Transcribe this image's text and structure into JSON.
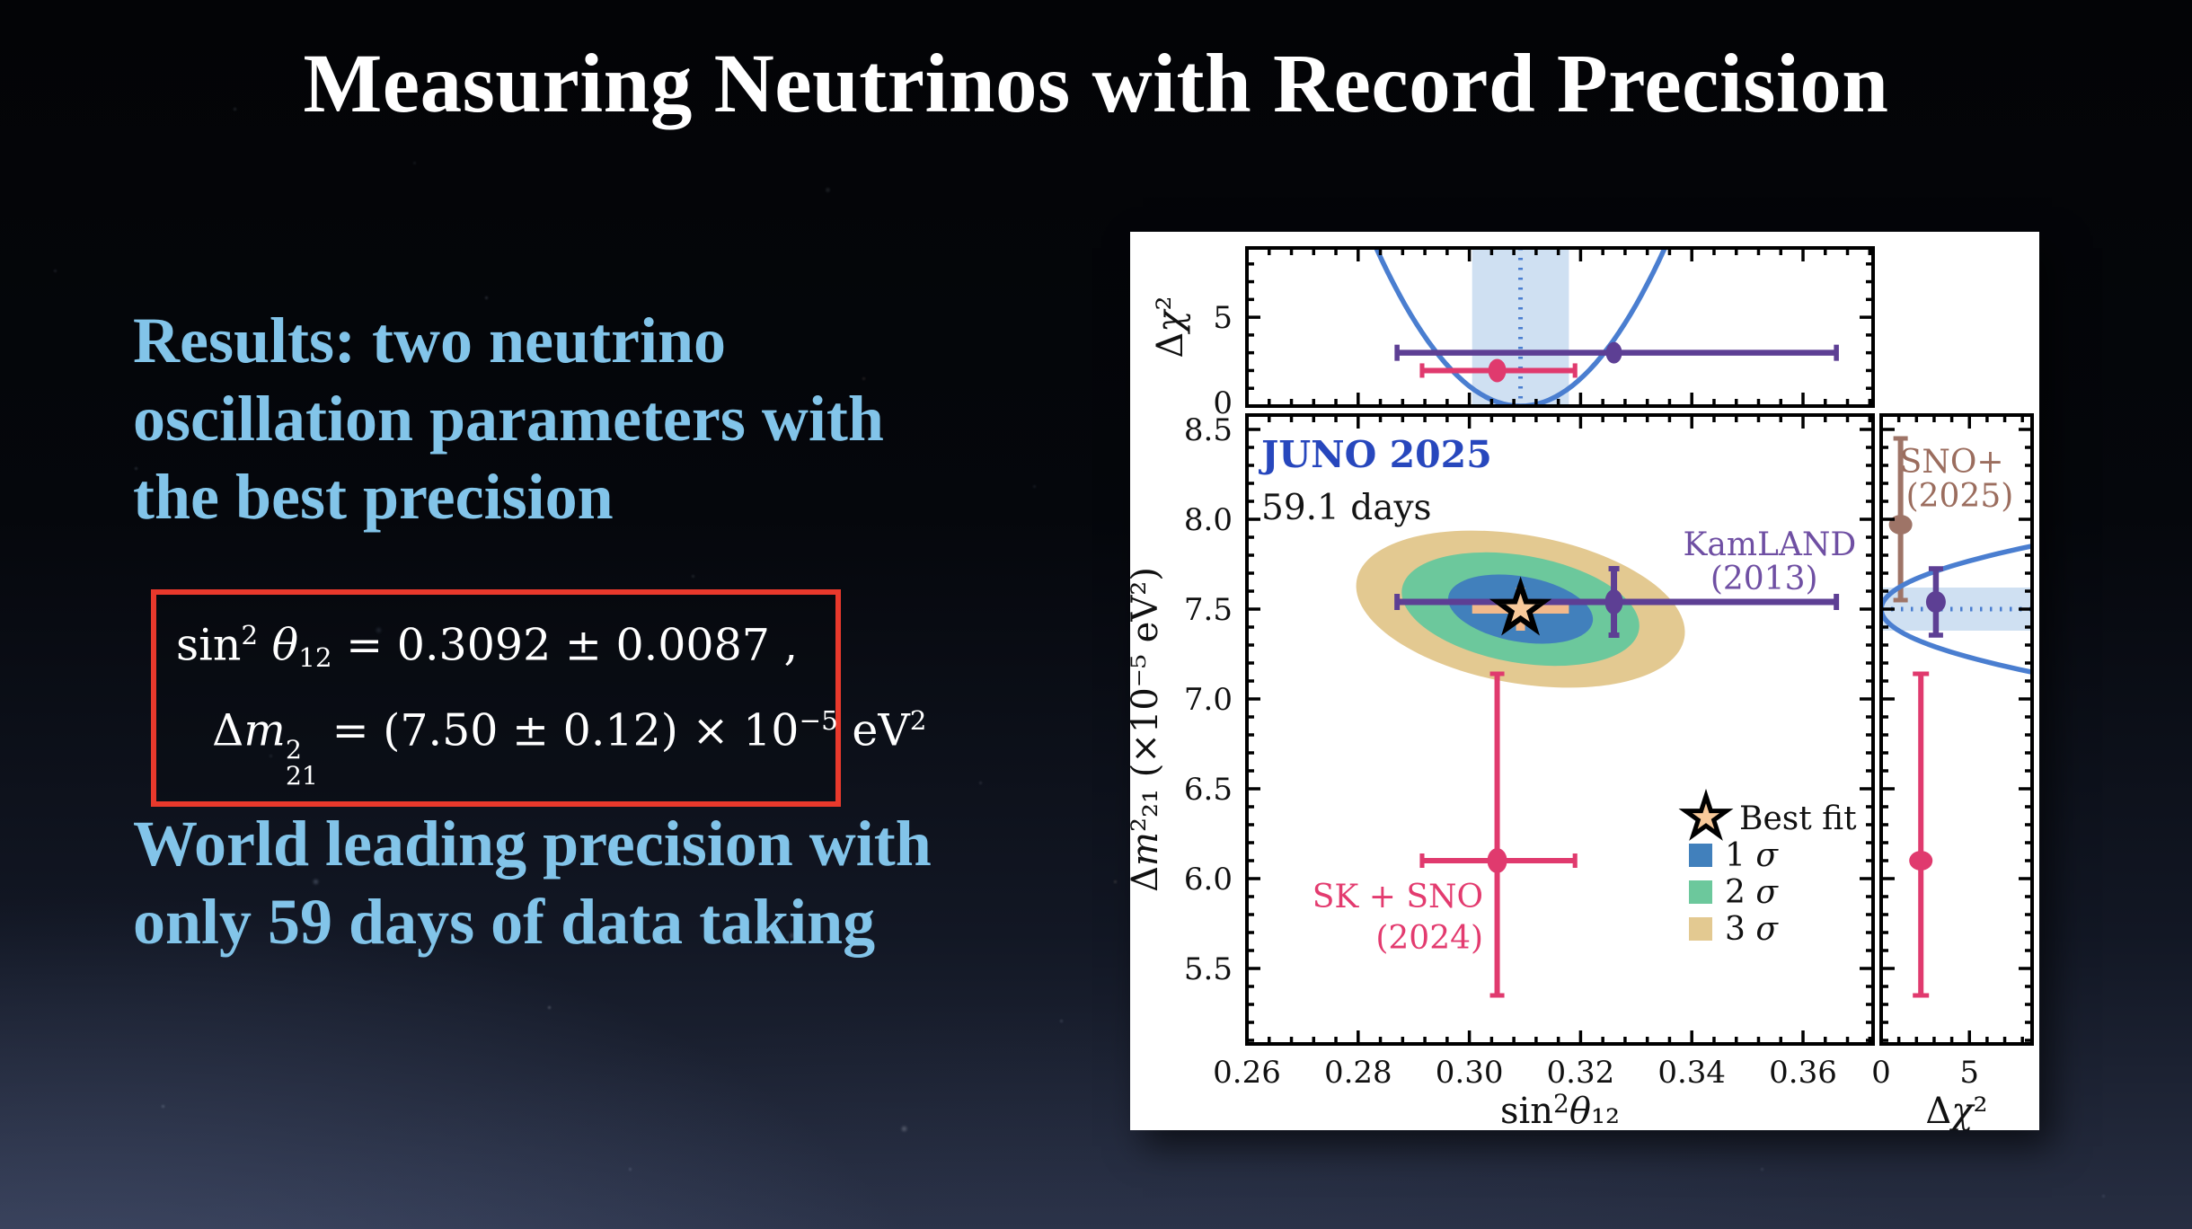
{
  "slide": {
    "title": "Measuring Neutrinos with Record Precision",
    "intro_lines": [
      "Results: two neutrino",
      "oscillation parameters with",
      "the best precision"
    ],
    "outro_lines": [
      "World leading precision with",
      "only 59 days of data taking"
    ],
    "equations_text": [
      "sin²θ₁₂ = 0.3092 ± 0.0087 ,",
      "Δm²₂₁ = (7.50 ± 0.12) × 10⁻⁵ eV²"
    ],
    "eq_line1": [
      {
        "t": "sin"
      },
      {
        "sup": "2"
      },
      {
        "t": " "
      },
      {
        "t": "θ",
        "i": true
      },
      {
        "sub": "12"
      },
      {
        "t": " = 0.3092 ± 0.0087 ,"
      }
    ],
    "eq_line2": [
      {
        "t": "Δ"
      },
      {
        "t": "m",
        "i": true
      },
      {
        "stack": [
          "2",
          "21"
        ]
      },
      {
        "t": " = (7.50 ± 0.12) × 10"
      },
      {
        "sup": "−5"
      },
      {
        "t": " eV"
      },
      {
        "sup": "2"
      }
    ],
    "accent_text_color": "#82c4e9",
    "box_border_color": "#e8392c"
  },
  "chart_data": {
    "type": "scatter",
    "annotation_title": "JUNO 2025",
    "annotation_subtitle": "59.1 days",
    "annotation_title_color": "#2747bd",
    "xlabel": "sin²θ₁₂",
    "xlabel_parts": [
      {
        "t": "sin"
      },
      {
        "t": "2",
        "sup": true
      },
      {
        "t": "θ",
        "i": true
      },
      {
        "t": "₁₂"
      }
    ],
    "ylabel": "Δm²₂₁ (×10⁻⁵ eV²)",
    "ylabel_parts": [
      {
        "t": "Δ"
      },
      {
        "t": "m",
        "i": true
      },
      {
        "t": "²₂₁ (×10⁻⁵ eV²)"
      }
    ],
    "marginal_label": "Δχ²",
    "marginal_label_parts": [
      {
        "t": "Δ"
      },
      {
        "t": "χ",
        "i": true
      },
      {
        "t": "²"
      }
    ],
    "xlim": [
      0.26,
      0.3726
    ],
    "ylim": [
      5.08,
      8.58
    ],
    "top_chi2_max": 8.9,
    "right_chi2_max": 8.55,
    "xticks": [
      "0.26",
      "0.28",
      "0.30",
      "0.32",
      "0.34",
      "0.36"
    ],
    "xtick_values": [
      0.26,
      0.28,
      0.3,
      0.32,
      0.34,
      0.36
    ],
    "xminor_step": 0.004,
    "yticks": [
      "5.5",
      "6.0",
      "6.5",
      "7.0",
      "7.5",
      "8.0",
      "8.5"
    ],
    "ytick_values": [
      5.5,
      6.0,
      6.5,
      7.0,
      7.5,
      8.0,
      8.5
    ],
    "yminor_step": 0.1,
    "chi2_ticks": [
      "0",
      "5"
    ],
    "chi2_tick_values": [
      0,
      5
    ],
    "chi2_minor_values": [
      1,
      2,
      3,
      4,
      6,
      7,
      8
    ],
    "band_color": "#cfe0f2",
    "curve_color": "#4a7ed0",
    "best_fit": {
      "label": "Best fit",
      "x": 0.3092,
      "x_err": 0.0087,
      "y": 7.5,
      "y_err": 0.12,
      "star_fill": "#f8c99a",
      "err_color": "#f2b98b"
    },
    "contours": [
      {
        "label": "1 σ",
        "color": "#4180bc",
        "k_sigma": 1.515
      },
      {
        "label": "2 σ",
        "color": "#6cc89c",
        "k_sigma": 2.486
      },
      {
        "label": "3 σ",
        "color": "#e3c991",
        "k_sigma": 3.439
      }
    ],
    "contour_tilt_deg": 10,
    "legend_labels": [
      "Best fit",
      "1 σ",
      "2 σ",
      "3 σ"
    ],
    "experiments": [
      {
        "name": "KamLAND",
        "label_lines": [
          "KamLAND",
          "(2013)"
        ],
        "color": "#5d3f94",
        "label_color": "#6f4fa3",
        "x": 0.326,
        "x_err_lo": 0.039,
        "x_err_hi": 0.04,
        "y": 7.54,
        "y_err_lo": 0.185,
        "y_err_hi": 0.185,
        "top_chi2": 3.0,
        "right_chi2": 3.1,
        "label_pos": {
          "panel": "main",
          "x": 0.354,
          "y": 7.8,
          "anchor": "middle"
        },
        "label2_pos": {
          "panel": "main",
          "x": 0.353,
          "y": 7.61,
          "anchor": "middle"
        }
      },
      {
        "name": "SK + SNO",
        "label_lines": [
          "SK + SNO",
          "(2024)"
        ],
        "color": "#e03a6e",
        "label_color": "#e33b6f",
        "x": 0.305,
        "x_err_lo": 0.0135,
        "x_err_hi": 0.014,
        "y": 6.1,
        "y_err_lo": 0.75,
        "y_err_hi": 1.04,
        "top_chi2": 2.0,
        "right_chi2": 2.25,
        "label_pos": {
          "panel": "main",
          "x": 0.3025,
          "y": 5.84,
          "anchor": "end"
        },
        "label2_pos": {
          "panel": "main",
          "x": 0.3025,
          "y": 5.61,
          "anchor": "end"
        }
      },
      {
        "name": "SNO+",
        "label_lines": [
          "SNO+",
          "(2025)"
        ],
        "color": "#9e7467",
        "label_color": "#9b6d5e",
        "y": 7.97,
        "y_err_lo": 0.42,
        "y_err_hi": 0.48,
        "right_chi2": 1.1,
        "right_panel_only": true,
        "label_pos": {
          "panel": "right",
          "chi2": 4.0,
          "y": 8.26,
          "anchor": "middle"
        },
        "label2_pos": {
          "panel": "right",
          "chi2": 4.45,
          "y": 8.07,
          "anchor": "middle"
        }
      }
    ]
  }
}
